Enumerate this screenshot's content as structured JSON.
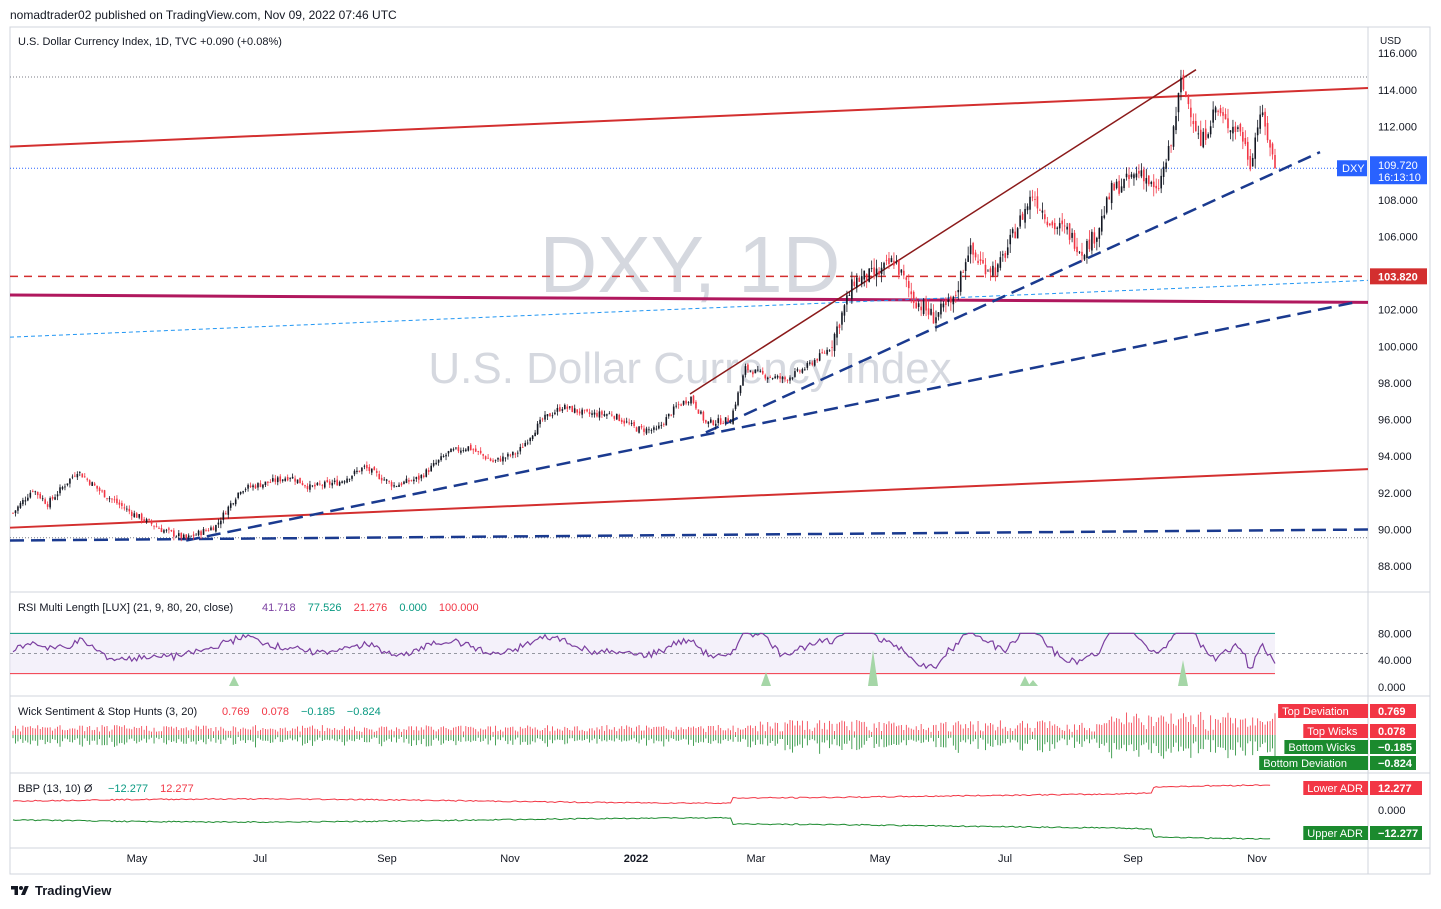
{
  "header": {
    "published": "nomadtrader02 published on TradingView.com, Nov 09, 2022 07:46 UTC"
  },
  "main_pane": {
    "title": "U.S. Dollar Currency Index, 1D, TVC",
    "change": "+0.090 (+0.08%)",
    "watermark_symbol": "DXY, 1D",
    "watermark_name": "U.S. Dollar Currency Index",
    "currency": "USD",
    "symbol_tag": "DXY",
    "last_price": "109.720",
    "countdown": "16:13:10",
    "level_label": "103.820"
  },
  "rsi_pane": {
    "title": "RSI Multi Length [LUX] (21, 9, 80, 20, close)",
    "values": [
      "41.718",
      "77.526",
      "21.276",
      "0.000",
      "100.000"
    ],
    "value_colors": [
      "#7b3fa0",
      "#089981",
      "#f23645",
      "#089981",
      "#f23645"
    ]
  },
  "wick_pane": {
    "title": "Wick Sentiment & Stop Hunts (3, 20)",
    "values": [
      "0.769",
      "0.078",
      "−0.185",
      "−0.824"
    ],
    "value_colors": [
      "#f23645",
      "#f23645",
      "#089981",
      "#089981"
    ],
    "tags": [
      {
        "name": "Top Deviation",
        "value": "0.769",
        "color": "#f23645"
      },
      {
        "name": "Top Wicks",
        "value": "0.078",
        "color": "#f23645"
      },
      {
        "name": "Bottom Wicks",
        "value": "−0.185",
        "color": "#1b8a2e"
      },
      {
        "name": "Bottom Deviation",
        "value": "−0.824",
        "color": "#1b8a2e"
      }
    ]
  },
  "bbp_pane": {
    "title": "BBP (13, 10)",
    "symbol": "Ø",
    "values": [
      "−12.277",
      "12.277"
    ],
    "value_colors": [
      "#089981",
      "#f23645"
    ],
    "tags": [
      {
        "name": "Lower ADR",
        "value": "12.277",
        "color": "#f23645"
      },
      {
        "name": "Upper ADR",
        "value": "−12.277",
        "color": "#1b8a2e"
      }
    ]
  },
  "footer": {
    "brand": "TradingView"
  },
  "chart_data": [
    {
      "type": "candlestick",
      "title": "U.S. Dollar Currency Index, 1D, TVC",
      "x_tick_labels": [
        "May",
        "Jul",
        "Sep",
        "Nov",
        "2022",
        "Mar",
        "May",
        "Jul",
        "Sep",
        "Nov"
      ],
      "y_tick_labels": [
        "88.000",
        "90.000",
        "92.000",
        "94.000",
        "96.000",
        "98.000",
        "100.000",
        "102.000",
        "104.000",
        "106.000",
        "108.000",
        "110.000",
        "112.000",
        "114.000",
        "116.000"
      ],
      "ylim": [
        87,
        117
      ],
      "anchors": [
        {
          "x": 0,
          "y": 90.9
        },
        {
          "x": 8,
          "y": 92.2
        },
        {
          "x": 14,
          "y": 91.4
        },
        {
          "x": 26,
          "y": 93.2
        },
        {
          "x": 36,
          "y": 92.0
        },
        {
          "x": 48,
          "y": 90.9
        },
        {
          "x": 60,
          "y": 90.0
        },
        {
          "x": 70,
          "y": 89.5
        },
        {
          "x": 82,
          "y": 90.2
        },
        {
          "x": 92,
          "y": 92.2
        },
        {
          "x": 104,
          "y": 92.6
        },
        {
          "x": 112,
          "y": 92.9
        },
        {
          "x": 120,
          "y": 92.3
        },
        {
          "x": 132,
          "y": 92.6
        },
        {
          "x": 142,
          "y": 93.4
        },
        {
          "x": 154,
          "y": 92.4
        },
        {
          "x": 164,
          "y": 92.8
        },
        {
          "x": 176,
          "y": 94.2
        },
        {
          "x": 184,
          "y": 94.5
        },
        {
          "x": 194,
          "y": 93.7
        },
        {
          "x": 204,
          "y": 94.2
        },
        {
          "x": 214,
          "y": 96.0
        },
        {
          "x": 222,
          "y": 96.7
        },
        {
          "x": 232,
          "y": 96.3
        },
        {
          "x": 242,
          "y": 96.3
        },
        {
          "x": 252,
          "y": 95.5
        },
        {
          "x": 260,
          "y": 95.4
        },
        {
          "x": 268,
          "y": 96.7
        },
        {
          "x": 274,
          "y": 97.2
        },
        {
          "x": 280,
          "y": 95.8
        },
        {
          "x": 290,
          "y": 96.0
        },
        {
          "x": 296,
          "y": 98.8
        },
        {
          "x": 304,
          "y": 98.4
        },
        {
          "x": 312,
          "y": 98.2
        },
        {
          "x": 320,
          "y": 98.8
        },
        {
          "x": 330,
          "y": 99.9
        },
        {
          "x": 340,
          "y": 103.6
        },
        {
          "x": 350,
          "y": 104.0
        },
        {
          "x": 356,
          "y": 104.7
        },
        {
          "x": 364,
          "y": 102.6
        },
        {
          "x": 372,
          "y": 101.6
        },
        {
          "x": 380,
          "y": 102.4
        },
        {
          "x": 386,
          "y": 105.3
        },
        {
          "x": 392,
          "y": 104.4
        },
        {
          "x": 398,
          "y": 104.2
        },
        {
          "x": 406,
          "y": 106.6
        },
        {
          "x": 412,
          "y": 108.3
        },
        {
          "x": 420,
          "y": 106.6
        },
        {
          "x": 426,
          "y": 106.3
        },
        {
          "x": 432,
          "y": 105.2
        },
        {
          "x": 438,
          "y": 106.2
        },
        {
          "x": 444,
          "y": 108.5
        },
        {
          "x": 450,
          "y": 109.0
        },
        {
          "x": 456,
          "y": 109.6
        },
        {
          "x": 462,
          "y": 108.3
        },
        {
          "x": 468,
          "y": 111.0
        },
        {
          "x": 472,
          "y": 114.4
        },
        {
          "x": 476,
          "y": 112.9
        },
        {
          "x": 480,
          "y": 111.0
        },
        {
          "x": 486,
          "y": 113.0
        },
        {
          "x": 490,
          "y": 112.2
        },
        {
          "x": 496,
          "y": 111.8
        },
        {
          "x": 500,
          "y": 110.0
        },
        {
          "x": 504,
          "y": 112.8
        },
        {
          "x": 508,
          "y": 111.0
        },
        {
          "x": 510,
          "y": 109.7
        }
      ],
      "last_price": 109.72,
      "series_indicators": [
        {
          "type": "line",
          "name": "RSI Multi Length [LUX]",
          "ylim": [
            0,
            100
          ],
          "y_tick_labels": [
            "0.000",
            "40.000",
            "80.000"
          ],
          "bands": [
            20,
            50,
            80
          ]
        },
        {
          "type": "bar",
          "name": "Wick Sentiment & Stop Hunts"
        },
        {
          "type": "line",
          "name": "BBP",
          "y_tick_labels": [
            "0.000"
          ]
        }
      ]
    }
  ],
  "colors": {
    "up": "#131722",
    "down": "#f23645",
    "trend_dark_red": "#8b1a1a",
    "trend_red": "#d32f2f",
    "support_blue": "#1a3a8f",
    "level_pink": "#b0185e",
    "light_blue": "#2196f3",
    "price_tag": "#2962ff"
  }
}
